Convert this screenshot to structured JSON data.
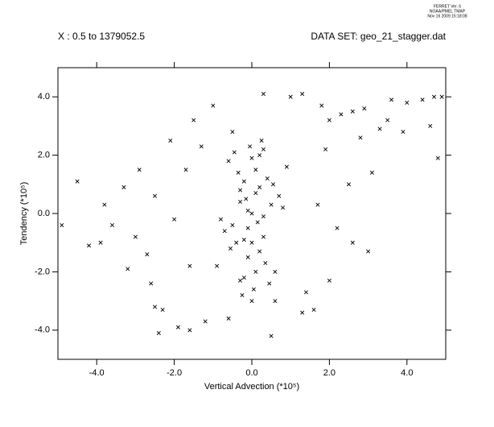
{
  "header": {
    "program": "FERRET Ver. 6",
    "org": "NOAA/PMEL TMAP",
    "date": "Nov 16 2009 15:18:08"
  },
  "chart_data": {
    "type": "scatter",
    "subtitle_left": "X : 0.5 to 1379052.5",
    "subtitle_right": "DATA SET: geo_21_stagger.dat",
    "xlabel": "Vertical Advection (*10⁵)",
    "ylabel": "Tendency (*10⁵)",
    "xlim": [
      -5,
      5
    ],
    "ylim": [
      -5,
      5
    ],
    "xticks": [
      {
        "value": -4,
        "label": "-4.0"
      },
      {
        "value": -2,
        "label": "-2.0"
      },
      {
        "value": 0,
        "label": "0.0"
      },
      {
        "value": 2,
        "label": "2.0"
      },
      {
        "value": 4,
        "label": "4.0"
      }
    ],
    "yticks": [
      {
        "value": -4,
        "label": "-4.0"
      },
      {
        "value": -2,
        "label": "-2.0"
      },
      {
        "value": 0,
        "label": "0.0"
      },
      {
        "value": 2,
        "label": "2.0"
      },
      {
        "value": 4,
        "label": "4.0"
      }
    ],
    "color": "#000000",
    "x": [
      0,
      0.1,
      -0.1,
      0.2,
      -0.2,
      0.3,
      -0.3,
      0.4,
      -0.4,
      0.5,
      -0.5,
      0.6,
      -0.6,
      0.7,
      -0.7,
      0.05,
      -0.05,
      0.15,
      -0.15,
      0.25,
      -0.25,
      0.35,
      -0.35,
      0.45,
      -0.45,
      0.55,
      -0.55,
      0.8,
      -0.8,
      0.9,
      -0.9,
      0,
      0.1,
      -0.1,
      0.2,
      -0.2,
      0.3,
      -0.3,
      0,
      0.1,
      -0.1,
      0.2,
      -0.2,
      0.0,
      0.3,
      -0.3,
      4.9,
      4.7,
      4.4,
      4.0,
      3.6,
      4.6,
      4.8,
      3.9,
      3.3,
      2.9,
      2.6,
      2.3,
      2.0,
      1.8,
      1.3,
      1.0,
      0.3,
      -1.0,
      -1.5,
      -2.1,
      -2.9,
      -3.3,
      -4.5,
      -3.8,
      -4.9,
      -4.2,
      -3.9,
      -3.0,
      -2.5,
      -2.7,
      -3.2,
      -2.6,
      -2.5,
      -2.3,
      -2.4,
      -1.9,
      -1.6,
      -1.2,
      -0.6,
      0.5,
      1.3,
      1.6,
      2.0,
      2.6,
      3.0,
      2.5,
      3.1,
      1.9,
      -1.7,
      -2.0,
      1.7,
      -1.6,
      2.2,
      -1.3,
      1.4,
      -0.5,
      0.6,
      2.8,
      3.5,
      -3.6
    ],
    "values": [
      0,
      1.5,
      -1.5,
      2.0,
      -2.2,
      -0.8,
      0.8,
      1.2,
      -1.0,
      0.3,
      -0.4,
      -2.0,
      1.8,
      0.6,
      -0.6,
      -2.6,
      2.3,
      -0.3,
      0.5,
      2.5,
      -2.8,
      -1.7,
      1.4,
      -2.4,
      2.1,
      1.0,
      -1.2,
      0.2,
      -0.2,
      1.6,
      -1.8,
      -1.0,
      0.7,
      -0.5,
      -1.3,
      1.1,
      2.2,
      -2.3,
      1.9,
      -2.0,
      0.1,
      0.9,
      -0.9,
      -3.0,
      -0.1,
      0.4,
      4.0,
      4.0,
      3.9,
      3.8,
      3.9,
      3.0,
      1.9,
      2.8,
      2.9,
      3.6,
      3.5,
      3.4,
      3.2,
      3.7,
      4.1,
      4.0,
      4.1,
      3.7,
      3.2,
      2.5,
      1.5,
      0.9,
      1.1,
      0.3,
      -0.4,
      -1.1,
      -1.0,
      -0.8,
      0.6,
      -1.4,
      -1.9,
      -2.4,
      -3.2,
      -3.3,
      -4.1,
      -3.9,
      -4.0,
      -3.7,
      -3.6,
      -4.2,
      -3.4,
      -3.3,
      -2.3,
      -1.0,
      -1.3,
      1.0,
      1.4,
      2.2,
      1.5,
      -0.2,
      0.3,
      -1.8,
      -0.5,
      2.3,
      -2.7,
      2.8,
      -3.0,
      2.6,
      3.2,
      -0.4
    ]
  }
}
